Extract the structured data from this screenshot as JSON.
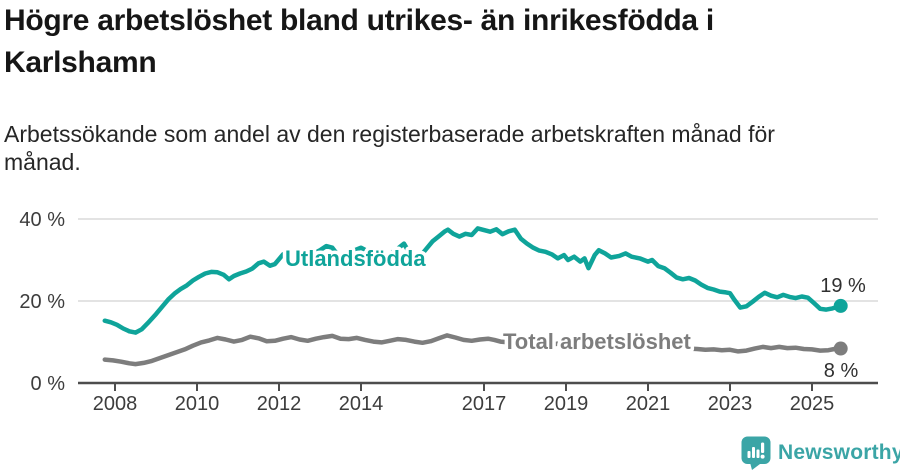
{
  "title_lines": [
    "Högre arbetslöshet bland utrikes- än inrikesfödda i",
    "Karlshamn"
  ],
  "subtitle_lines": [
    "Arbetssökande som andel av den registerbaserade arbetskraften månad för",
    "månad."
  ],
  "logo": {
    "text": "Newsworthy",
    "color": "#3ba5a6"
  },
  "chart_data": {
    "type": "line",
    "title": "Högre arbetslöshet bland utrikes- än inrikesfödda i Karlshamn",
    "subtitle": "Arbetssökande som andel av den registerbaserade arbetskraften månad för månad.",
    "unit": "%",
    "grid": "horizontal",
    "legend_position": "inline-labels",
    "y_range": [
      0,
      40
    ],
    "x_range": [
      2007.75,
      2025.7
    ],
    "y_ticks": [
      {
        "value": 0,
        "label": "0 %"
      },
      {
        "value": 20,
        "label": "20 %"
      },
      {
        "value": 40,
        "label": "40 %"
      }
    ],
    "x_ticks": [
      {
        "value": 2008,
        "label": "2008"
      },
      {
        "value": 2010,
        "label": "2010"
      },
      {
        "value": 2012,
        "label": "2012"
      },
      {
        "value": 2014,
        "label": "2014"
      },
      {
        "value": 2017,
        "label": "2017"
      },
      {
        "value": 2019,
        "label": "2019"
      },
      {
        "value": 2021,
        "label": "2021"
      },
      {
        "value": 2023,
        "label": "2023"
      },
      {
        "value": 2025,
        "label": "2025"
      }
    ],
    "series": [
      {
        "id": "utlandsfodda",
        "name": "Utlandsfödda",
        "color": "#0fa49a",
        "end_label": "19 %",
        "end_value": 19,
        "points": [
          [
            2007.75,
            15.2
          ],
          [
            2007.9,
            14.8
          ],
          [
            2008.05,
            14.2
          ],
          [
            2008.2,
            13.3
          ],
          [
            2008.35,
            12.6
          ],
          [
            2008.5,
            12.3
          ],
          [
            2008.65,
            13.1
          ],
          [
            2008.8,
            14.6
          ],
          [
            2009.0,
            16.8
          ],
          [
            2009.15,
            18.6
          ],
          [
            2009.3,
            20.4
          ],
          [
            2009.45,
            21.8
          ],
          [
            2009.6,
            22.9
          ],
          [
            2009.75,
            23.8
          ],
          [
            2009.9,
            25.0
          ],
          [
            2010.05,
            25.9
          ],
          [
            2010.2,
            26.7
          ],
          [
            2010.35,
            27.1
          ],
          [
            2010.5,
            27.0
          ],
          [
            2010.65,
            26.4
          ],
          [
            2010.78,
            25.3
          ],
          [
            2010.9,
            26.1
          ],
          [
            2011.05,
            26.7
          ],
          [
            2011.2,
            27.2
          ],
          [
            2011.35,
            27.9
          ],
          [
            2011.5,
            29.2
          ],
          [
            2011.63,
            29.6
          ],
          [
            2011.78,
            28.6
          ],
          [
            2011.9,
            29.0
          ],
          [
            2012.0,
            30.2
          ],
          [
            2012.1,
            31.4
          ],
          [
            2012.25,
            30.7
          ],
          [
            2012.4,
            30.0
          ],
          [
            2012.55,
            30.4
          ],
          [
            2012.7,
            31.0
          ],
          [
            2012.85,
            31.6
          ],
          [
            2013.0,
            32.4
          ],
          [
            2013.15,
            33.4
          ],
          [
            2013.3,
            33.0
          ],
          [
            2013.45,
            31.0
          ],
          [
            2013.55,
            30.2
          ],
          [
            2013.7,
            31.4
          ],
          [
            2013.85,
            32.4
          ],
          [
            2014.0,
            33.0
          ],
          [
            2014.15,
            32.2
          ],
          [
            2014.3,
            31.2
          ],
          [
            2014.45,
            30.0
          ],
          [
            2014.6,
            30.6
          ],
          [
            2014.75,
            31.8
          ],
          [
            2014.9,
            32.8
          ],
          [
            2015.05,
            34.0
          ],
          [
            2015.2,
            31.4
          ],
          [
            2015.3,
            29.2
          ],
          [
            2015.45,
            31.0
          ],
          [
            2015.6,
            32.8
          ],
          [
            2015.75,
            34.6
          ],
          [
            2015.9,
            35.8
          ],
          [
            2016.05,
            37.0
          ],
          [
            2016.12,
            37.4
          ],
          [
            2016.25,
            36.4
          ],
          [
            2016.4,
            35.7
          ],
          [
            2016.55,
            36.4
          ],
          [
            2016.7,
            36.1
          ],
          [
            2016.85,
            37.7
          ],
          [
            2017.0,
            37.3
          ],
          [
            2017.15,
            36.9
          ],
          [
            2017.3,
            37.5
          ],
          [
            2017.45,
            36.3
          ],
          [
            2017.6,
            37.0
          ],
          [
            2017.75,
            37.4
          ],
          [
            2017.9,
            35.2
          ],
          [
            2018.05,
            34.0
          ],
          [
            2018.2,
            33.0
          ],
          [
            2018.35,
            32.3
          ],
          [
            2018.5,
            32.0
          ],
          [
            2018.65,
            31.4
          ],
          [
            2018.8,
            30.4
          ],
          [
            2018.95,
            31.2
          ],
          [
            2019.05,
            30.0
          ],
          [
            2019.2,
            30.8
          ],
          [
            2019.35,
            29.6
          ],
          [
            2019.45,
            30.4
          ],
          [
            2019.55,
            28.0
          ],
          [
            2019.7,
            31.2
          ],
          [
            2019.8,
            32.4
          ],
          [
            2019.95,
            31.6
          ],
          [
            2020.1,
            30.6
          ],
          [
            2020.3,
            31.0
          ],
          [
            2020.45,
            31.6
          ],
          [
            2020.6,
            30.8
          ],
          [
            2020.8,
            30.4
          ],
          [
            2021.0,
            29.6
          ],
          [
            2021.1,
            30.0
          ],
          [
            2021.25,
            28.5
          ],
          [
            2021.4,
            28.0
          ],
          [
            2021.55,
            26.9
          ],
          [
            2021.7,
            25.7
          ],
          [
            2021.85,
            25.3
          ],
          [
            2022.0,
            25.6
          ],
          [
            2022.15,
            25.0
          ],
          [
            2022.3,
            24.0
          ],
          [
            2022.45,
            23.2
          ],
          [
            2022.6,
            22.8
          ],
          [
            2022.75,
            22.3
          ],
          [
            2022.9,
            22.1
          ],
          [
            2023.0,
            21.9
          ],
          [
            2023.1,
            20.4
          ],
          [
            2023.25,
            18.4
          ],
          [
            2023.4,
            18.7
          ],
          [
            2023.55,
            19.8
          ],
          [
            2023.7,
            21.0
          ],
          [
            2023.85,
            22.0
          ],
          [
            2024.0,
            21.3
          ],
          [
            2024.15,
            20.9
          ],
          [
            2024.3,
            21.5
          ],
          [
            2024.45,
            21.0
          ],
          [
            2024.6,
            20.7
          ],
          [
            2024.75,
            21.1
          ],
          [
            2024.9,
            20.8
          ],
          [
            2025.05,
            19.5
          ],
          [
            2025.2,
            18.1
          ],
          [
            2025.35,
            17.9
          ],
          [
            2025.5,
            18.2
          ],
          [
            2025.7,
            18.8
          ]
        ]
      },
      {
        "id": "total",
        "name": "Total arbetslöshet",
        "color": "#7d7d7d",
        "end_label": "8 %",
        "end_value": 8,
        "points": [
          [
            2007.75,
            5.7
          ],
          [
            2007.95,
            5.5
          ],
          [
            2008.15,
            5.2
          ],
          [
            2008.35,
            4.8
          ],
          [
            2008.5,
            4.6
          ],
          [
            2008.7,
            4.9
          ],
          [
            2008.9,
            5.4
          ],
          [
            2009.1,
            6.1
          ],
          [
            2009.3,
            6.8
          ],
          [
            2009.5,
            7.5
          ],
          [
            2009.7,
            8.2
          ],
          [
            2009.9,
            9.1
          ],
          [
            2010.1,
            9.9
          ],
          [
            2010.3,
            10.4
          ],
          [
            2010.5,
            11.0
          ],
          [
            2010.7,
            10.6
          ],
          [
            2010.9,
            10.1
          ],
          [
            2011.1,
            10.5
          ],
          [
            2011.3,
            11.3
          ],
          [
            2011.5,
            10.9
          ],
          [
            2011.7,
            10.2
          ],
          [
            2011.9,
            10.3
          ],
          [
            2012.1,
            10.8
          ],
          [
            2012.3,
            11.2
          ],
          [
            2012.5,
            10.6
          ],
          [
            2012.7,
            10.3
          ],
          [
            2012.9,
            10.8
          ],
          [
            2013.1,
            11.2
          ],
          [
            2013.3,
            11.5
          ],
          [
            2013.5,
            10.8
          ],
          [
            2013.7,
            10.7
          ],
          [
            2013.9,
            11.0
          ],
          [
            2014.1,
            10.5
          ],
          [
            2014.3,
            10.1
          ],
          [
            2014.5,
            9.9
          ],
          [
            2014.7,
            10.3
          ],
          [
            2014.9,
            10.7
          ],
          [
            2015.1,
            10.5
          ],
          [
            2015.3,
            10.1
          ],
          [
            2015.5,
            9.8
          ],
          [
            2015.7,
            10.2
          ],
          [
            2015.9,
            10.9
          ],
          [
            2016.1,
            11.6
          ],
          [
            2016.3,
            11.1
          ],
          [
            2016.5,
            10.5
          ],
          [
            2016.7,
            10.3
          ],
          [
            2016.9,
            10.6
          ],
          [
            2017.1,
            10.8
          ],
          [
            2017.25,
            10.5
          ],
          [
            2017.4,
            10.1
          ],
          [
            2017.6,
            9.9
          ],
          [
            2017.8,
            9.8
          ],
          [
            2018.0,
            10.1
          ],
          [
            2018.2,
            9.9
          ],
          [
            2018.4,
            9.5
          ],
          [
            2018.6,
            9.3
          ],
          [
            2018.8,
            9.6
          ],
          [
            2019.0,
            9.6
          ],
          [
            2019.2,
            9.3
          ],
          [
            2019.4,
            9.1
          ],
          [
            2019.6,
            9.3
          ],
          [
            2019.8,
            9.5
          ],
          [
            2020.0,
            9.4
          ],
          [
            2020.2,
            10.3
          ],
          [
            2020.4,
            10.8
          ],
          [
            2020.6,
            10.3
          ],
          [
            2020.8,
            10.0
          ],
          [
            2021.0,
            9.8
          ],
          [
            2021.2,
            9.4
          ],
          [
            2021.4,
            9.0
          ],
          [
            2021.6,
            8.8
          ],
          [
            2021.8,
            8.6
          ],
          [
            2022.0,
            8.4
          ],
          [
            2022.2,
            8.3
          ],
          [
            2022.4,
            8.1
          ],
          [
            2022.6,
            8.2
          ],
          [
            2022.8,
            8.0
          ],
          [
            2023.0,
            8.1
          ],
          [
            2023.2,
            7.7
          ],
          [
            2023.4,
            7.9
          ],
          [
            2023.6,
            8.4
          ],
          [
            2023.8,
            8.8
          ],
          [
            2024.0,
            8.5
          ],
          [
            2024.2,
            8.8
          ],
          [
            2024.4,
            8.5
          ],
          [
            2024.6,
            8.6
          ],
          [
            2024.8,
            8.3
          ],
          [
            2025.0,
            8.2
          ],
          [
            2025.2,
            7.9
          ],
          [
            2025.4,
            8.0
          ],
          [
            2025.55,
            8.3
          ],
          [
            2025.7,
            8.4
          ]
        ]
      }
    ]
  }
}
